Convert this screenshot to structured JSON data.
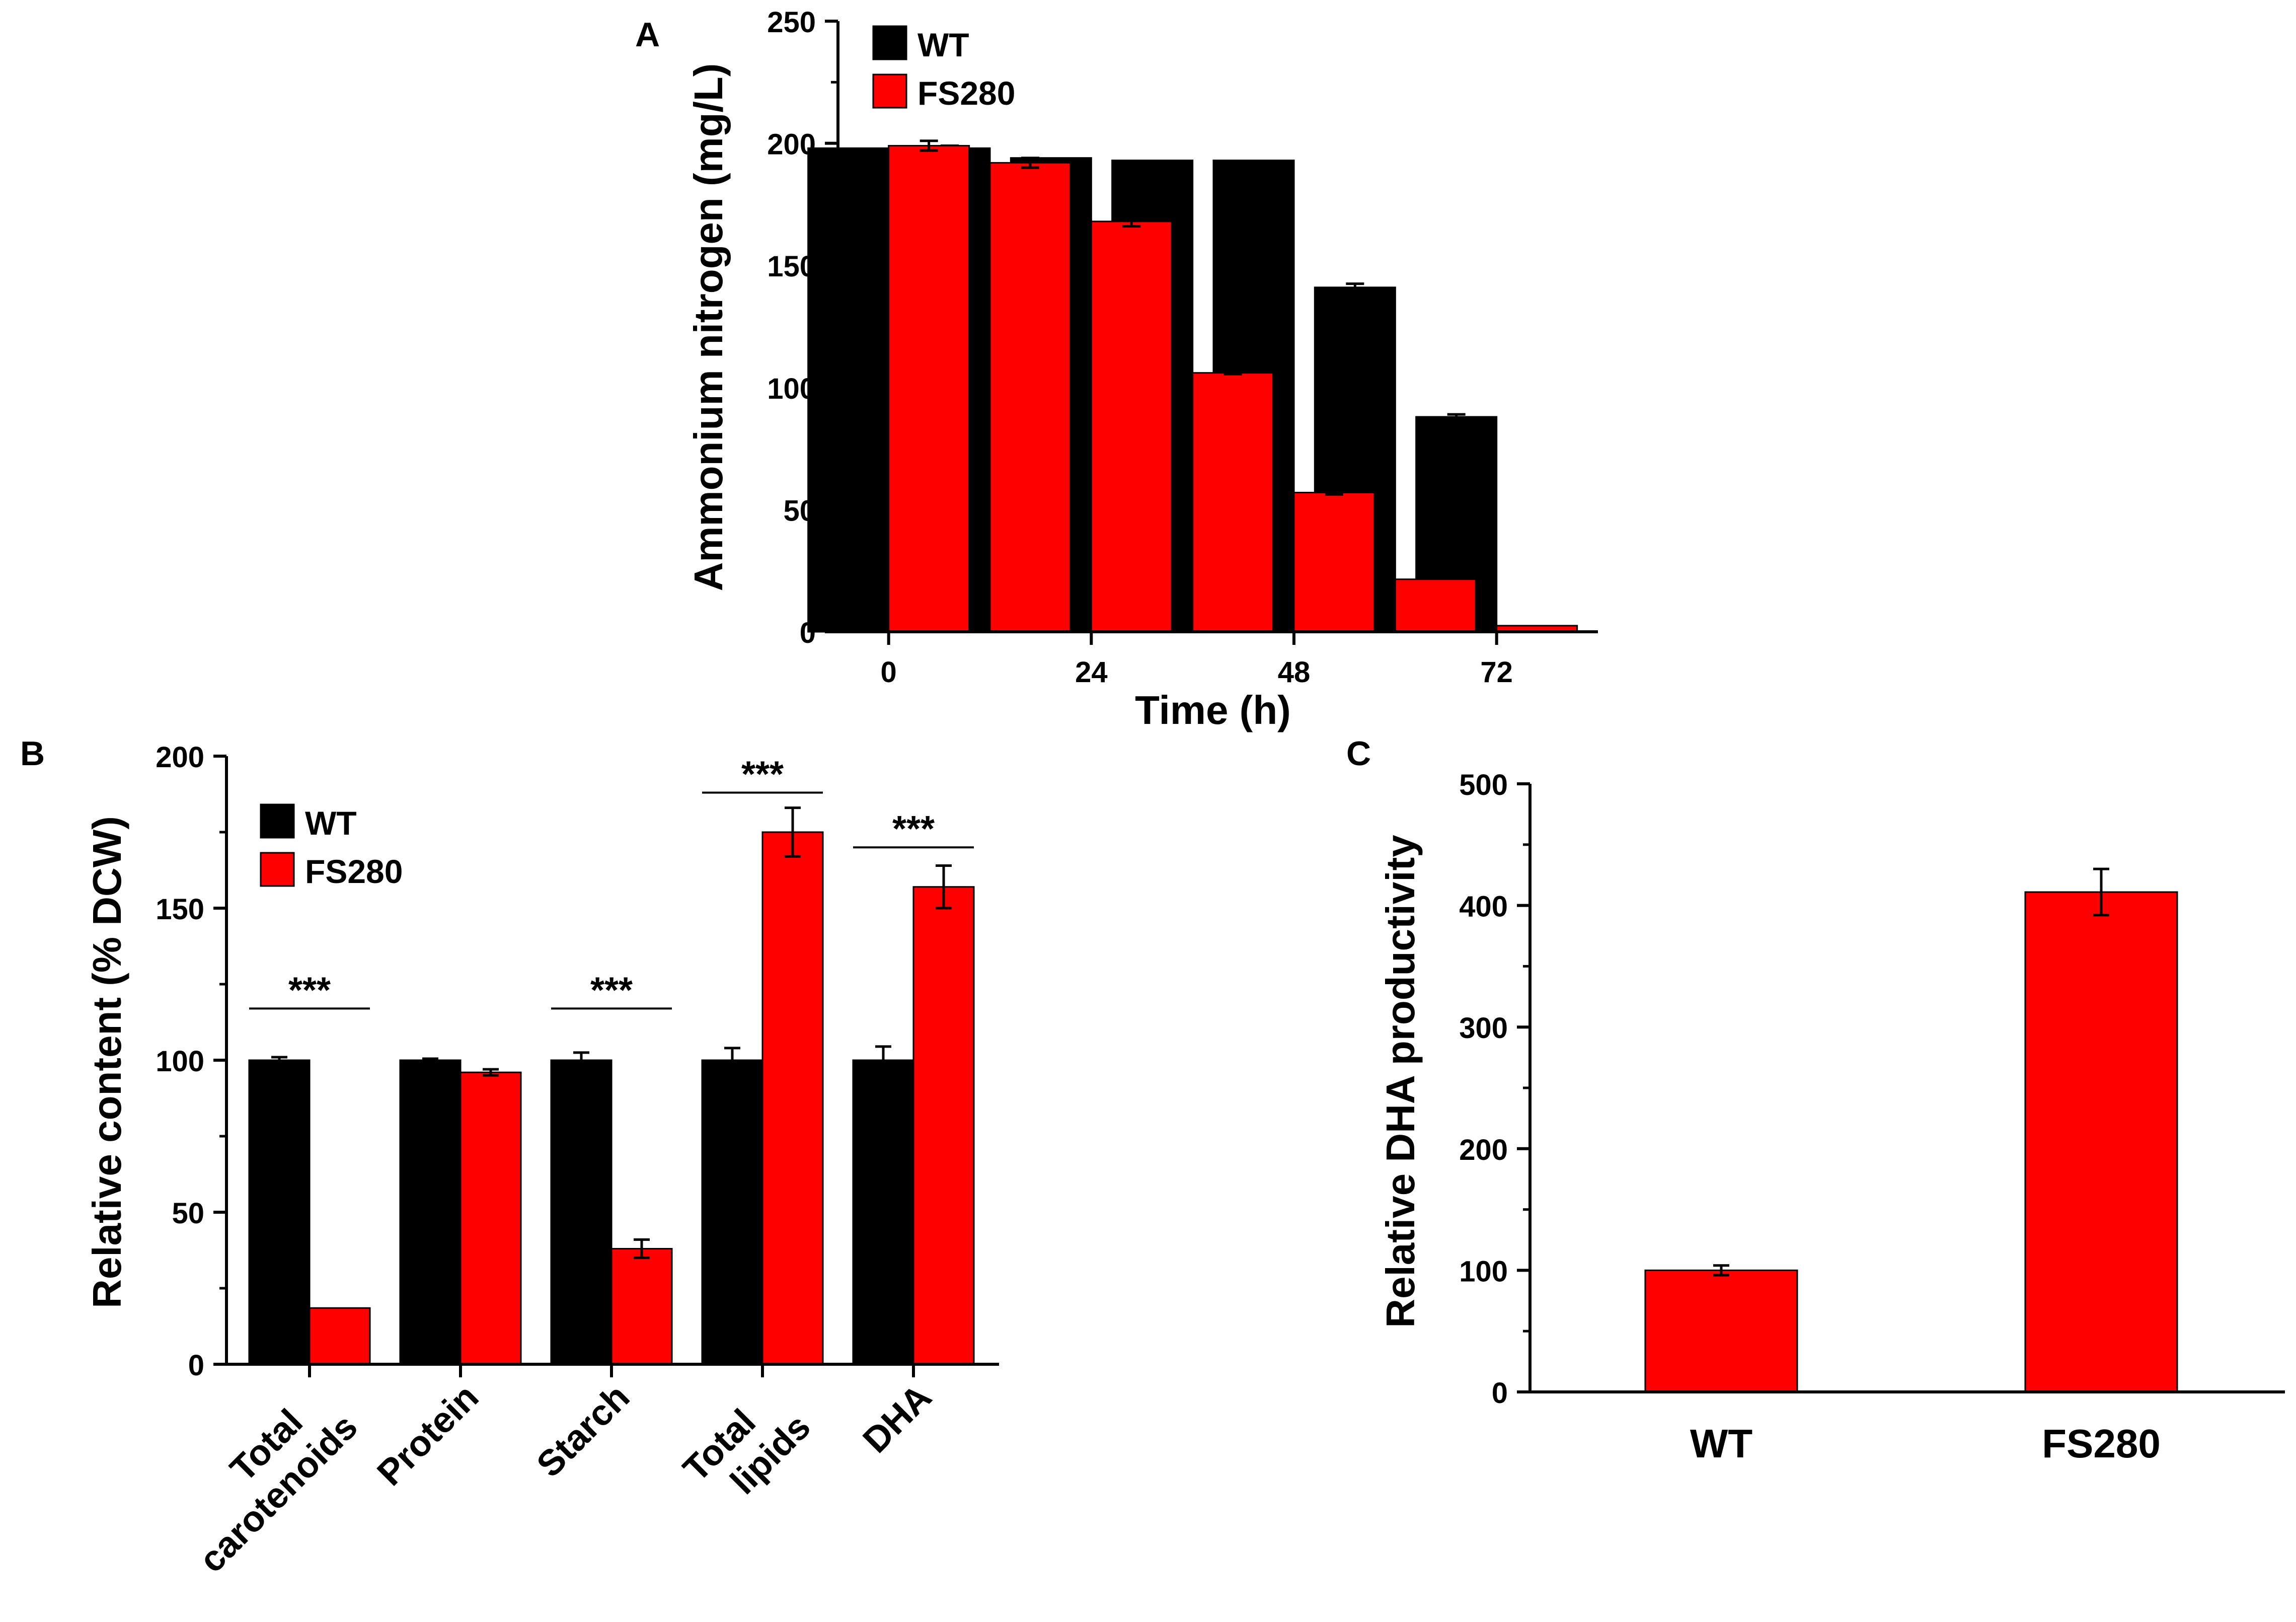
{
  "colors": {
    "wt": "#000000",
    "fs280": "#ff0000",
    "axis": "#000000"
  },
  "chart_data": [
    {
      "id": "A",
      "type": "bar",
      "panel_label": "A",
      "xlabel": "Time (h)",
      "ylabel": "Ammonium nitrogen (mg/L)",
      "ylim": [
        0,
        250
      ],
      "yticks": [
        0,
        50,
        100,
        150,
        200,
        250
      ],
      "x_positions": [
        0,
        12,
        24,
        36,
        48,
        60,
        72
      ],
      "xlim": [
        -6,
        84
      ],
      "xticks": [
        0,
        24,
        48,
        72
      ],
      "legend": {
        "position": "top-left",
        "entries": [
          "WT",
          "FS280"
        ]
      },
      "series": [
        {
          "name": "WT",
          "values": [
            198,
            198,
            194,
            193,
            193,
            141,
            88
          ],
          "errors": [
            0,
            1,
            0,
            0,
            0,
            1.5,
            1
          ]
        },
        {
          "name": "FS280",
          "values": [
            199,
            192,
            168,
            106,
            57,
            21.5,
            2.5
          ],
          "errors": [
            2,
            2,
            2,
            0.5,
            0.8,
            0,
            0
          ]
        }
      ]
    },
    {
      "id": "B",
      "type": "bar",
      "panel_label": "B",
      "xlabel": "",
      "ylabel": "Relative content (% DCW)",
      "ylim": [
        0,
        200
      ],
      "yticks": [
        0,
        50,
        100,
        150,
        200
      ],
      "categories": [
        {
          "lines": [
            "Total",
            "carotenoids"
          ]
        },
        {
          "lines": [
            "Protein"
          ]
        },
        {
          "lines": [
            "Starch"
          ]
        },
        {
          "lines": [
            "Total",
            "lipids"
          ]
        },
        {
          "lines": [
            "DHA"
          ]
        }
      ],
      "legend": {
        "position": "top-left",
        "entries": [
          "WT",
          "FS280"
        ]
      },
      "series": [
        {
          "name": "WT",
          "values": [
            100,
            100,
            100,
            100,
            100
          ],
          "errors": [
            1,
            0.5,
            2.5,
            4,
            4.5
          ]
        },
        {
          "name": "FS280",
          "values": [
            18.5,
            96,
            38,
            175,
            157
          ],
          "errors": [
            0,
            1,
            3,
            8,
            7
          ]
        }
      ],
      "annotations": [
        {
          "category": 0,
          "text": "***",
          "y": 117
        },
        {
          "category": 2,
          "text": "***",
          "y": 117
        },
        {
          "category": 3,
          "text": "***",
          "y": 188
        },
        {
          "category": 4,
          "text": "***",
          "y": 170
        }
      ]
    },
    {
      "id": "C",
      "type": "bar",
      "panel_label": "C",
      "xlabel": "",
      "ylabel": "Relative DHA productivity",
      "ylim": [
        0,
        500
      ],
      "yticks": [
        0,
        100,
        200,
        300,
        400,
        500
      ],
      "categories": [
        "WT",
        "FS280"
      ],
      "series": [
        {
          "name": "FS280",
          "values": [
            100,
            411
          ],
          "errors": [
            4,
            19
          ]
        }
      ]
    }
  ]
}
